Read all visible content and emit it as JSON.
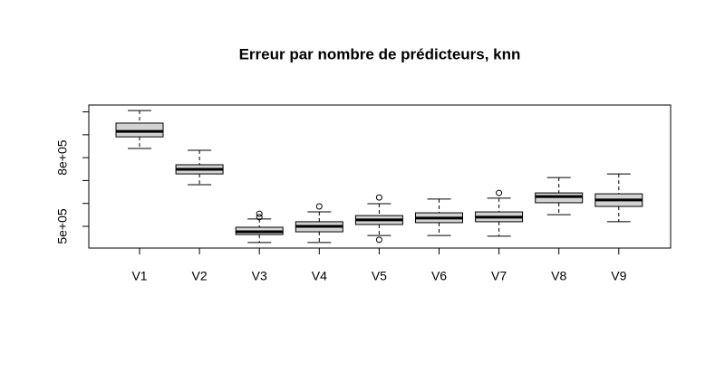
{
  "chart_data": {
    "type": "boxplot",
    "title": "Erreur par nombre de prédicteurs, knn",
    "categories": [
      "V1",
      "V2",
      "V3",
      "V4",
      "V5",
      "V6",
      "V7",
      "V8",
      "V9"
    ],
    "color": "#d3d3d3",
    "boxes": [
      {
        "whislo": 840000,
        "q1": 891000,
        "med": 915000,
        "q3": 951000,
        "whishi": 1006000,
        "outliers": []
      },
      {
        "whislo": 682000,
        "q1": 729000,
        "med": 749000,
        "q3": 769000,
        "whishi": 832000,
        "outliers": []
      },
      {
        "whislo": 429000,
        "q1": 464000,
        "med": 476000,
        "q3": 496000,
        "whishi": 532000,
        "outliers": [
          555000,
          540000
        ]
      },
      {
        "whislo": 429000,
        "q1": 476000,
        "med": 500000,
        "q3": 520000,
        "whishi": 563000,
        "outliers": [
          587000
        ]
      },
      {
        "whislo": 460000,
        "q1": 508000,
        "med": 528000,
        "q3": 547000,
        "whishi": 599000,
        "outliers": [
          626000,
          441000
        ]
      },
      {
        "whislo": 460000,
        "q1": 516000,
        "med": 536000,
        "q3": 559000,
        "whishi": 619000,
        "outliers": []
      },
      {
        "whislo": 457000,
        "q1": 520000,
        "med": 540000,
        "q3": 563000,
        "whishi": 623000,
        "outliers": [
          646000
        ]
      },
      {
        "whislo": 551000,
        "q1": 603000,
        "med": 630000,
        "q3": 646000,
        "whishi": 713000,
        "outliers": []
      },
      {
        "whislo": 520000,
        "q1": 587000,
        "med": 615000,
        "q3": 642000,
        "whishi": 729000,
        "outliers": []
      }
    ],
    "ylim": [
      405000,
      1030000
    ],
    "yticks": [
      {
        "value": 500000,
        "label": "5e+05"
      },
      600000,
      700000,
      {
        "value": 800000,
        "label": "8e+05"
      },
      900000,
      1000000
    ]
  }
}
